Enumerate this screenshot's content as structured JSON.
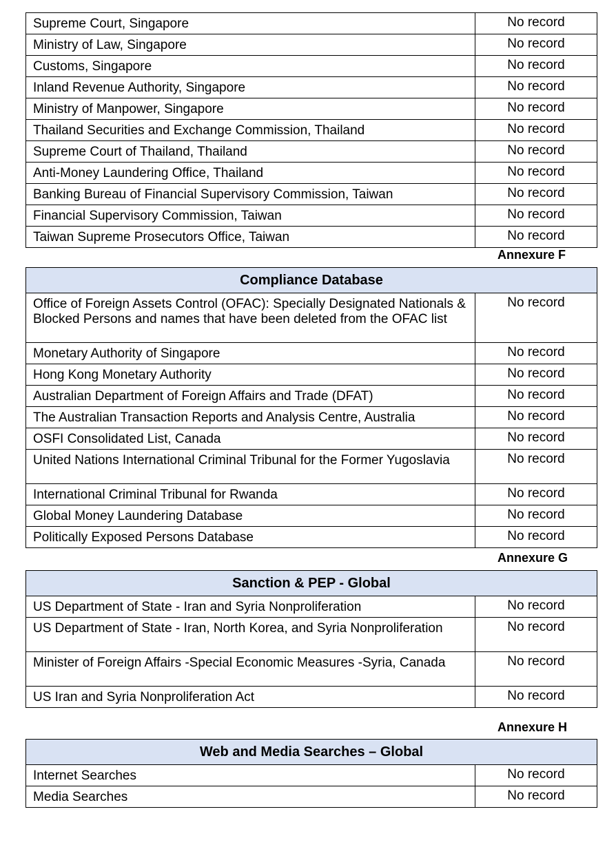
{
  "sections": [
    {
      "annexure": "",
      "title": "",
      "rows": [
        {
          "name": "Supreme Court, Singapore",
          "result": "No record"
        },
        {
          "name": "Ministry of Law, Singapore",
          "result": "No record"
        },
        {
          "name": "Customs, Singapore",
          "result": "No record"
        },
        {
          "name": "Inland Revenue Authority, Singapore",
          "result": "No record"
        },
        {
          "name": "Ministry of Manpower, Singapore",
          "result": "No record"
        },
        {
          "name": "Thailand Securities and Exchange Commission, Thailand",
          "result": "No record"
        },
        {
          "name": "Supreme Court of Thailand, Thailand",
          "result": "No record"
        },
        {
          "name": "Anti-Money Laundering Office, Thailand",
          "result": "No record"
        },
        {
          "name": "Banking Bureau of Financial Supervisory Commission, Taiwan",
          "result": "No record"
        },
        {
          "name": "Financial Supervisory Commission, Taiwan",
          "result": "No record"
        },
        {
          "name": "Taiwan Supreme Prosecutors Office, Taiwan",
          "result": "No record"
        }
      ]
    },
    {
      "annexure": "Annexure F",
      "title": "Compliance Database",
      "rows": [
        {
          "name": "Office of Foreign Assets Control (OFAC): Specially Designated Nationals & Blocked Persons and names that have been deleted from the OFAC list",
          "result": "No record",
          "lines": 3
        },
        {
          "name": "Monetary Authority of Singapore",
          "result": "No record"
        },
        {
          "name": "Hong Kong Monetary Authority",
          "result": "No record"
        },
        {
          "name": "Australian Department of Foreign Affairs and Trade (DFAT)",
          "result": "No record"
        },
        {
          "name": "The Australian Transaction Reports and Analysis Centre, Australia",
          "result": "No record"
        },
        {
          "name": "OSFI Consolidated List, Canada",
          "result": "No record"
        },
        {
          "name": "United Nations International Criminal Tribunal for the Former Yugoslavia",
          "result": "No record",
          "lines": 2
        },
        {
          "name": "International Criminal Tribunal for Rwanda",
          "result": "No record"
        },
        {
          "name": "Global Money Laundering Database",
          "result": "No record"
        },
        {
          "name": "Politically Exposed Persons Database",
          "result": "No record"
        }
      ]
    },
    {
      "annexure": "Annexure G",
      "title": "Sanction & PEP - Global",
      "rows": [
        {
          "name": "US Department of State - Iran and Syria Nonproliferation",
          "result": "No record"
        },
        {
          "name": "US Department of State - Iran, North Korea, and Syria Nonproliferation",
          "result": "No record",
          "lines": 2
        },
        {
          "name": "Minister of Foreign Affairs -Special Economic Measures -Syria, Canada",
          "result": "No record",
          "lines": 2
        },
        {
          "name": "US Iran and Syria Nonproliferation Act",
          "result": "No record"
        }
      ]
    },
    {
      "annexure": "Annexure H",
      "title": "Web and Media Searches – Global",
      "rows": [
        {
          "name": "Internet Searches",
          "result": "No record"
        },
        {
          "name": "Media Searches",
          "result": "No record"
        }
      ]
    }
  ],
  "colors": {
    "header_bg": "#d9e2f3",
    "border": "#000000"
  }
}
